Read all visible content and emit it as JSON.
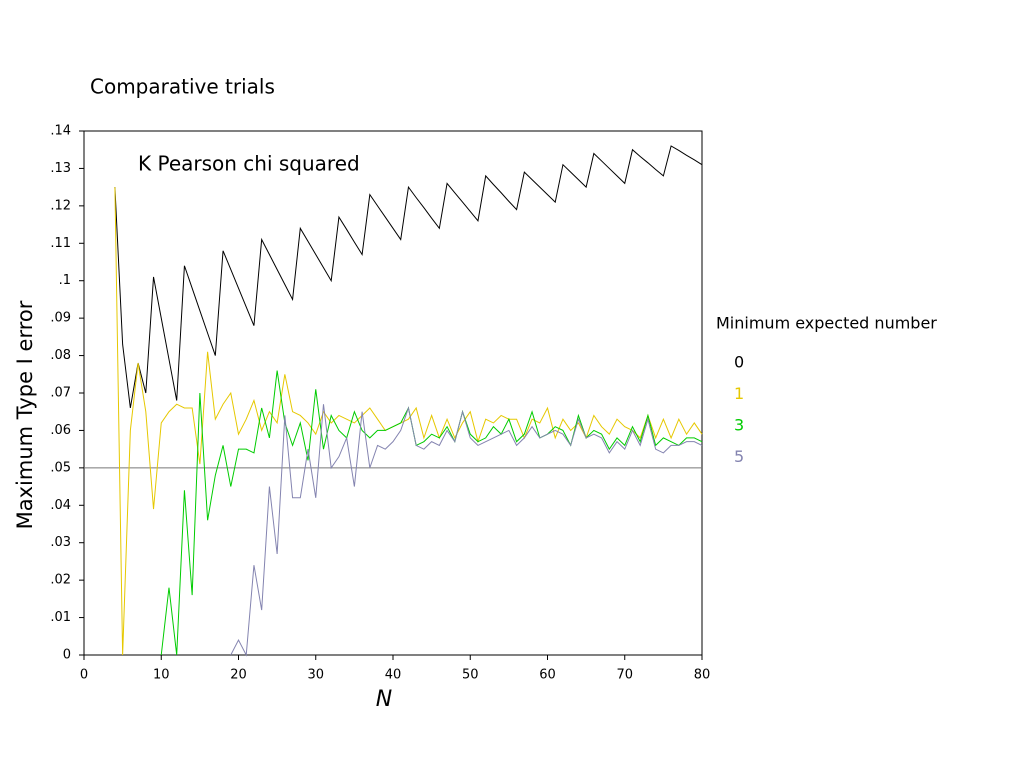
{
  "chart_data": {
    "type": "line",
    "title": "Comparative trials",
    "annotation": "K Pearson chi squared",
    "xlabel": "N",
    "ylabel": "Maximum Type I error",
    "legend_title": "Minimum expected number",
    "legend_position": "right",
    "reference_line": 0.05,
    "xlim": [
      0,
      80
    ],
    "xticks": [
      0,
      10,
      20,
      30,
      40,
      50,
      60,
      70,
      80
    ],
    "ylim": [
      0,
      0.14
    ],
    "yticks": [
      0,
      {
        "value": 0.01,
        "label": ".01"
      },
      {
        "value": 0.02,
        "label": ".02"
      },
      {
        "value": 0.03,
        "label": ".03"
      },
      {
        "value": 0.04,
        "label": ".04"
      },
      {
        "value": 0.05,
        "label": ".05"
      },
      {
        "value": 0.06,
        "label": ".06"
      },
      {
        "value": 0.07,
        "label": ".07"
      },
      {
        "value": 0.08,
        "label": ".08"
      },
      {
        "value": 0.09,
        "label": ".09"
      },
      {
        "value": 0.1,
        "label": ".1"
      },
      {
        "value": 0.11,
        "label": ".11"
      },
      {
        "value": 0.12,
        "label": ".12"
      },
      {
        "value": 0.13,
        "label": ".13"
      },
      {
        "value": 0.14,
        "label": ".14"
      }
    ],
    "x": [
      4,
      5,
      6,
      7,
      8,
      9,
      10,
      11,
      12,
      13,
      14,
      15,
      16,
      17,
      18,
      19,
      20,
      21,
      22,
      23,
      24,
      25,
      26,
      27,
      28,
      29,
      30,
      31,
      32,
      33,
      34,
      35,
      36,
      37,
      38,
      39,
      40,
      41,
      42,
      43,
      44,
      45,
      46,
      47,
      48,
      49,
      50,
      51,
      52,
      53,
      54,
      55,
      56,
      57,
      58,
      59,
      60,
      61,
      62,
      63,
      64,
      65,
      66,
      67,
      68,
      69,
      70,
      71,
      72,
      73,
      74,
      75,
      76,
      77,
      78,
      79,
      80
    ],
    "series": [
      {
        "name": "0",
        "color": "#000000",
        "values": [
          0.125,
          0.083,
          0.066,
          0.078,
          0.07,
          0.101,
          0.09,
          0.079,
          0.068,
          0.104,
          0.098,
          0.092,
          0.086,
          0.08,
          0.108,
          0.103,
          0.098,
          0.093,
          0.088,
          0.111,
          0.107,
          0.103,
          0.099,
          0.095,
          0.114,
          0.1105,
          0.107,
          0.1035,
          0.1,
          0.117,
          0.1137,
          0.1103,
          0.107,
          0.123,
          0.12,
          0.117,
          0.114,
          0.111,
          0.125,
          0.1222,
          0.1195,
          0.1167,
          0.114,
          0.126,
          0.1235,
          0.121,
          0.1185,
          0.116,
          0.128,
          0.1257,
          0.1235,
          0.1212,
          0.119,
          0.129,
          0.127,
          0.125,
          0.123,
          0.121,
          0.131,
          0.129,
          0.127,
          0.125,
          0.134,
          0.132,
          0.13,
          0.128,
          0.126,
          0.135,
          0.1332,
          0.1315,
          0.1297,
          0.128,
          0.136,
          0.1348,
          0.1335,
          0.1323,
          0.131
        ]
      },
      {
        "name": "1",
        "color": "#e6c800",
        "values": [
          0.125,
          0.0,
          0.06,
          0.078,
          0.065,
          0.039,
          0.062,
          0.065,
          0.067,
          0.066,
          0.066,
          0.051,
          0.081,
          0.063,
          0.067,
          0.07,
          0.059,
          0.063,
          0.068,
          0.06,
          0.065,
          0.062,
          0.075,
          0.065,
          0.064,
          0.062,
          0.059,
          0.065,
          0.062,
          0.064,
          0.063,
          0.062,
          0.064,
          0.066,
          0.063,
          0.06,
          0.061,
          0.062,
          0.063,
          0.066,
          0.058,
          0.064,
          0.058,
          0.063,
          0.058,
          0.062,
          0.065,
          0.057,
          0.063,
          0.062,
          0.064,
          0.063,
          0.063,
          0.058,
          0.063,
          0.062,
          0.066,
          0.058,
          0.063,
          0.06,
          0.062,
          0.058,
          0.064,
          0.061,
          0.059,
          0.063,
          0.061,
          0.06,
          0.058,
          0.064,
          0.058,
          0.063,
          0.058,
          0.063,
          0.059,
          0.062,
          0.059
        ]
      },
      {
        "name": "3",
        "color": "#00cc00",
        "values": [
          null,
          null,
          null,
          null,
          null,
          null,
          0.0,
          0.018,
          0.0,
          0.044,
          0.016,
          0.07,
          0.036,
          0.048,
          0.056,
          0.045,
          0.055,
          0.055,
          0.054,
          0.066,
          0.058,
          0.076,
          0.062,
          0.056,
          0.062,
          0.052,
          0.071,
          0.055,
          0.064,
          0.06,
          0.058,
          0.065,
          0.06,
          0.058,
          0.06,
          0.06,
          0.061,
          0.062,
          0.066,
          0.056,
          0.057,
          0.059,
          0.058,
          0.061,
          0.057,
          0.065,
          0.059,
          0.057,
          0.058,
          0.061,
          0.059,
          0.063,
          0.057,
          0.059,
          0.065,
          0.058,
          0.059,
          0.061,
          0.06,
          0.056,
          0.064,
          0.058,
          0.06,
          0.059,
          0.055,
          0.058,
          0.056,
          0.061,
          0.057,
          0.064,
          0.056,
          0.058,
          0.057,
          0.056,
          0.058,
          0.058,
          0.057
        ]
      },
      {
        "name": "5",
        "color": "#8484b0",
        "values": [
          null,
          null,
          null,
          null,
          null,
          null,
          null,
          null,
          null,
          null,
          null,
          null,
          null,
          null,
          null,
          0.0,
          0.004,
          0.0,
          0.024,
          0.012,
          0.045,
          0.027,
          0.064,
          0.042,
          0.042,
          0.055,
          0.042,
          0.067,
          0.05,
          0.053,
          0.058,
          0.045,
          0.065,
          0.05,
          0.056,
          0.055,
          0.057,
          0.06,
          0.066,
          0.056,
          0.055,
          0.057,
          0.056,
          0.06,
          0.057,
          0.065,
          0.058,
          0.056,
          0.057,
          0.058,
          0.059,
          0.06,
          0.056,
          0.058,
          0.061,
          0.058,
          0.059,
          0.06,
          0.059,
          0.056,
          0.063,
          0.058,
          0.059,
          0.058,
          0.054,
          0.057,
          0.055,
          0.06,
          0.056,
          0.063,
          0.055,
          0.054,
          0.056,
          0.056,
          0.057,
          0.057,
          0.056
        ]
      }
    ]
  }
}
